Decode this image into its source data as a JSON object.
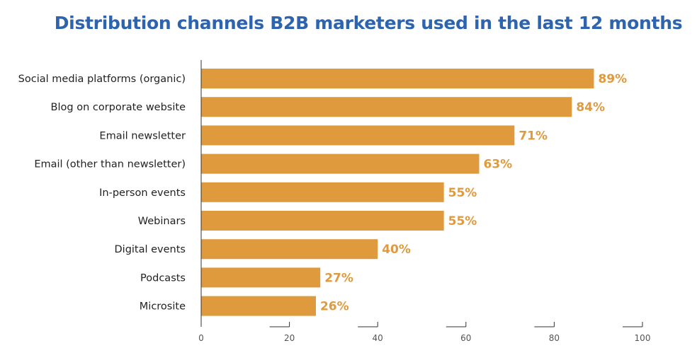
{
  "chart_data": {
    "type": "bar",
    "orientation": "horizontal",
    "title": "Distribution channels B2B marketers used in the last 12 months",
    "categories": [
      "Social media platforms (organic)",
      "Blog on corporate website",
      "Email newsletter",
      "Email (other than newsletter)",
      "In-person events",
      "Webinars",
      "Digital events",
      "Podcasts",
      "Microsite"
    ],
    "values": [
      89,
      84,
      71,
      63,
      55,
      55,
      40,
      27,
      26
    ],
    "data_labels": [
      "89%",
      "84%",
      "71%",
      "63%",
      "55%",
      "55%",
      "40%",
      "27%",
      "26%"
    ],
    "xlim": [
      0,
      100
    ],
    "x_ticks": [
      0,
      20,
      40,
      60,
      80,
      100
    ],
    "x_tick_labels": [
      "0",
      "20",
      "40",
      "60",
      "80",
      "100"
    ],
    "xlabel": "",
    "ylabel": "",
    "grid": false,
    "colors": {
      "bar": "#e09a3e",
      "data_label": "#e09a3e",
      "title": "#2e63ad",
      "axis": "#333333"
    }
  }
}
